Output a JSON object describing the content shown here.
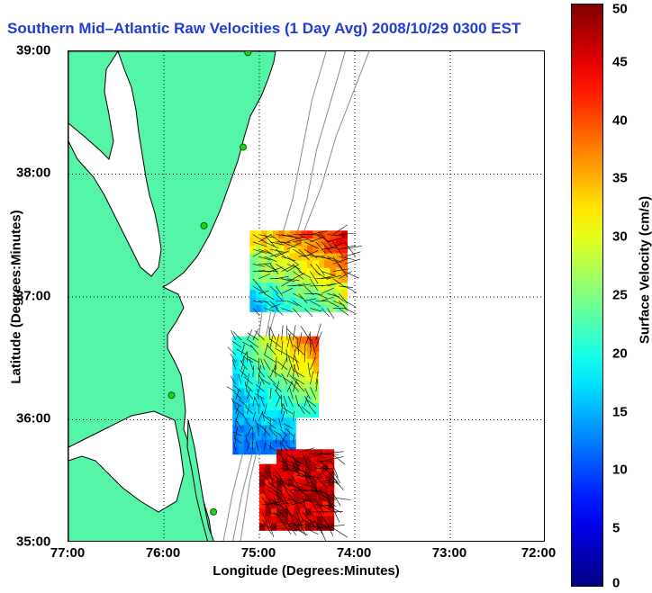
{
  "title": "Southern Mid–Atlantic Raw Velocities (1 Day Avg) 2008/10/29 0300 EST",
  "map": {
    "lon_range": [
      -77,
      -72
    ],
    "lat_range": [
      35,
      39
    ],
    "x_ticks": [
      "77:00",
      "76:00",
      "75:00",
      "74:00",
      "73:00",
      "72:00"
    ],
    "y_ticks": [
      "35:00",
      "36:00",
      "37:00",
      "38:00",
      "39:00"
    ],
    "xlabel": "Longitude (Degrees:Minutes)",
    "ylabel": "Latitude (Degrees:Minutes)",
    "grid": "dotted",
    "land_color": "#55f5a8",
    "sites": [
      {
        "lon": -75.12,
        "lat": 38.99
      },
      {
        "lon": -75.17,
        "lat": 38.22
      },
      {
        "lon": -75.58,
        "lat": 37.58
      },
      {
        "lon": -75.92,
        "lat": 36.2
      },
      {
        "lon": -75.48,
        "lat": 35.25
      }
    ]
  },
  "colorbar": {
    "label": "Surface Velocity (cm/s)",
    "min": 0,
    "max": 50,
    "ticks": [
      "0",
      "5",
      "10",
      "15",
      "20",
      "25",
      "30",
      "35",
      "40",
      "45",
      "50"
    ],
    "colormap": "jet"
  },
  "velocity_regions": [
    {
      "name": "north",
      "lon_range": [
        -75.1,
        -74.12
      ],
      "lat_range": [
        36.88,
        37.5
      ],
      "speed_range": [
        15,
        45
      ]
    },
    {
      "name": "central",
      "lon_range": [
        -75.28,
        -74.42
      ],
      "lat_range": [
        35.72,
        36.68
      ],
      "speed_range": [
        10,
        35
      ]
    },
    {
      "name": "south",
      "lon_range": [
        -75.0,
        -74.25
      ],
      "lat_range": [
        35.1,
        35.75
      ],
      "speed_range": [
        30,
        50
      ]
    }
  ]
}
